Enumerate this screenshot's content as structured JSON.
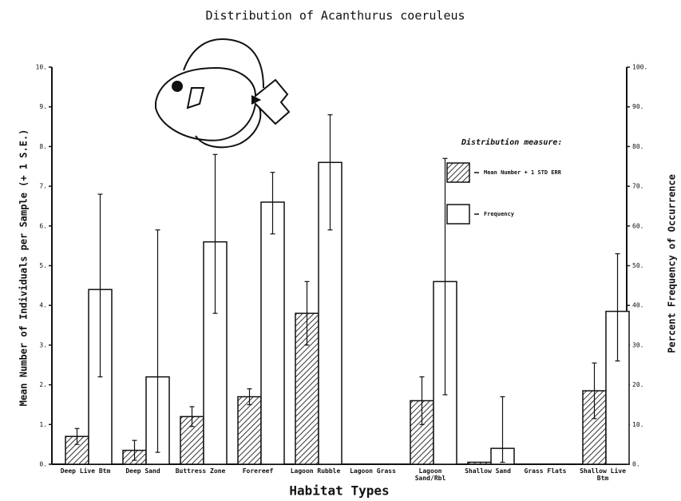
{
  "chart_data": {
    "type": "bar",
    "title": "Distribution of Acanthurus coeruleus",
    "x_label": "Habitat Types",
    "y_label": "Mean Number of Individuals per Sample (+ 1 S.E.)",
    "y2_label": "Percent Frequency of Occurrence",
    "legend_title": "Distribution measure:",
    "categories": [
      "Deep Live Btm",
      "Deep Sand",
      "Buttress Zone",
      "Forereef",
      "Lagoon Rubble",
      "Lagoon Grass",
      "Lagoon Sand/Rbl",
      "Shallow Sand",
      "Grass Flats",
      "Shallow Live Btm"
    ],
    "ylim": [
      0,
      10
    ],
    "yticks": [
      {
        "value": 0,
        "label": "0."
      },
      {
        "value": 1,
        "label": "1."
      },
      {
        "value": 2,
        "label": "2."
      },
      {
        "value": 3,
        "label": "3."
      },
      {
        "value": 4,
        "label": "4."
      },
      {
        "value": 5,
        "label": "5."
      },
      {
        "value": 6,
        "label": "6."
      },
      {
        "value": 7,
        "label": "7."
      },
      {
        "value": 8,
        "label": "8."
      },
      {
        "value": 9,
        "label": "9."
      },
      {
        "value": 10,
        "label": "10."
      }
    ],
    "y2lim": [
      0,
      100
    ],
    "y2ticks": [
      {
        "value": 0,
        "label": "0."
      },
      {
        "value": 10,
        "label": "10."
      },
      {
        "value": 20,
        "label": "20."
      },
      {
        "value": 30,
        "label": "30."
      },
      {
        "value": 40,
        "label": "40."
      },
      {
        "value": 50,
        "label": "50."
      },
      {
        "value": 60,
        "label": "60."
      },
      {
        "value": 70,
        "label": "70."
      },
      {
        "value": 80,
        "label": "80."
      },
      {
        "value": 90,
        "label": "90."
      },
      {
        "value": 100,
        "label": "100."
      }
    ],
    "series": [
      {
        "name": "Mean Number + 1 STD ERR",
        "color": "#333333",
        "hatch": true,
        "values": [
          0.7,
          0.35,
          1.2,
          1.7,
          3.8,
          0,
          1.6,
          0.05,
          0,
          1.85
        ],
        "errors_plus": [
          0.2,
          0.25,
          0.25,
          0.2,
          0.8,
          0,
          0.6,
          0,
          0,
          0.7
        ],
        "errors_minus": [
          0.2,
          0.25,
          0.25,
          0.2,
          0.8,
          0,
          0.6,
          0,
          0,
          0.7
        ]
      },
      {
        "name": "Frequency",
        "color": "#ffffff",
        "hatch": false,
        "axis": "y2",
        "values": [
          44,
          22,
          56,
          66,
          76,
          0,
          46,
          4,
          0,
          38.5
        ],
        "errors_plus": [
          24,
          37,
          22,
          7.5,
          12,
          0,
          31,
          13,
          0,
          14.5
        ],
        "errors_minus": [
          22,
          19,
          18,
          8,
          17,
          0,
          28.5,
          3.5,
          0,
          12.5
        ]
      }
    ]
  }
}
